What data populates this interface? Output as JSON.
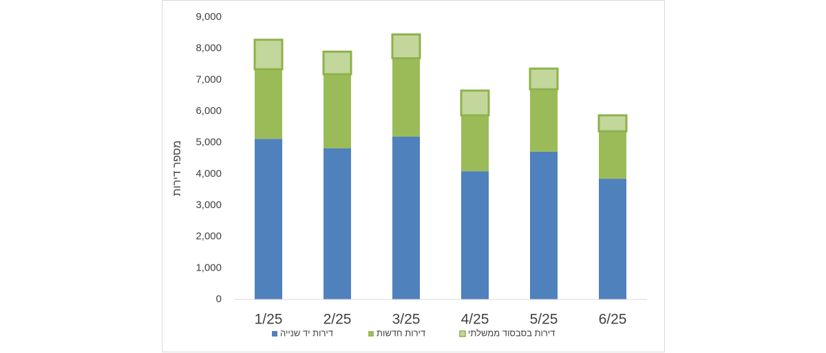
{
  "chart_data": {
    "type": "stacked_bar",
    "y_label": "מספר דירות",
    "categories": [
      "1/25",
      "2/25",
      "3/25",
      "4/25",
      "5/25",
      "6/25"
    ],
    "series": [
      {
        "name": "דירות יד שנייה",
        "color": "#4f81bd",
        "values": [
          5120,
          4820,
          5190,
          4090,
          4710,
          3850
        ]
      },
      {
        "name": "דירות חדשות",
        "color": "#9bbb59",
        "values": [
          2220,
          2360,
          2500,
          1780,
          1990,
          1510
        ]
      },
      {
        "name": "דירות בסבסוד ממשלתי",
        "color": "#c3d69b",
        "border_color": "#8cb24a",
        "values": [
          940,
          720,
          760,
          790,
          660,
          510
        ]
      }
    ],
    "ylim": [
      0,
      9000
    ],
    "yticks": [
      0,
      {
        "value": 1000,
        "label": "1,000"
      },
      {
        "value": 2000,
        "label": "2,000"
      },
      {
        "value": 3000,
        "label": "3,000"
      },
      {
        "value": 4000,
        "label": "4,000"
      },
      {
        "value": 5000,
        "label": "5,000"
      },
      {
        "value": 6000,
        "label": "6,000"
      },
      {
        "value": 7000,
        "label": "7,000"
      },
      {
        "value": 8000,
        "label": "8,000"
      },
      {
        "value": 9000,
        "label": "9,000"
      }
    ],
    "grid": false,
    "legend": "bottom"
  }
}
